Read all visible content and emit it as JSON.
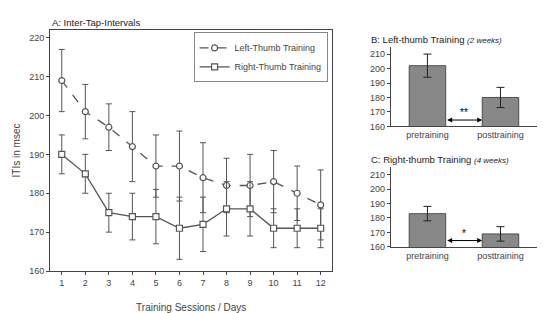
{
  "chart_data": [
    {
      "type": "line",
      "title": "A: Inter-Tap-Intervals",
      "x_label": "Training Sessions / Days",
      "y_label": "ITIs in msec",
      "x": [
        1,
        2,
        3,
        4,
        5,
        6,
        7,
        8,
        9,
        10,
        11,
        12
      ],
      "series": [
        {
          "name": "Left-Thumb Training",
          "color": "#555555",
          "marker": "circle",
          "line_style": "dashed",
          "values": [
            209,
            201,
            197,
            192,
            187,
            187,
            184,
            182,
            182,
            183,
            180,
            177
          ],
          "errors": [
            8,
            7,
            6,
            9,
            8,
            9,
            9,
            7,
            8,
            8,
            7,
            9
          ]
        },
        {
          "name": "Right-Thumb Training",
          "color": "#555555",
          "marker": "square",
          "line_style": "solid",
          "values": [
            190,
            185,
            175,
            174,
            174,
            171,
            172,
            176,
            176,
            171,
            171,
            171
          ],
          "errors": [
            5,
            5,
            5,
            6,
            7,
            8,
            7,
            7,
            7,
            5,
            5,
            5
          ]
        }
      ],
      "xlim": [
        0.5,
        12.5
      ],
      "xticks": [
        1,
        2,
        3,
        4,
        5,
        6,
        7,
        8,
        9,
        10,
        11,
        12
      ],
      "ylim": [
        160,
        222
      ],
      "yticks": [
        160,
        170,
        180,
        190,
        200,
        210,
        220
      ],
      "grid": false,
      "legend": "upper right"
    },
    {
      "type": "bar",
      "title": "B: Left-thumb Training",
      "subtitle": "(2 weeks)",
      "categories": [
        "pretraining",
        "posttraining"
      ],
      "values": [
        202,
        180
      ],
      "errors": [
        8,
        7
      ],
      "color": "#888888",
      "ylim": [
        160,
        215
      ],
      "yticks": [
        160,
        170,
        180,
        190,
        200,
        210
      ],
      "grid": false,
      "annotations": [
        "**"
      ]
    },
    {
      "type": "bar",
      "title": "C: Right-thumb Training",
      "subtitle": "(4 weeks)",
      "categories": [
        "pretraining",
        "posttraining"
      ],
      "values": [
        183,
        169
      ],
      "errors": [
        5,
        5
      ],
      "color": "#888888",
      "ylim": [
        160,
        215
      ],
      "yticks": [
        160,
        170,
        180,
        190,
        200,
        210
      ],
      "grid": false,
      "annotations": [
        "*"
      ]
    }
  ]
}
